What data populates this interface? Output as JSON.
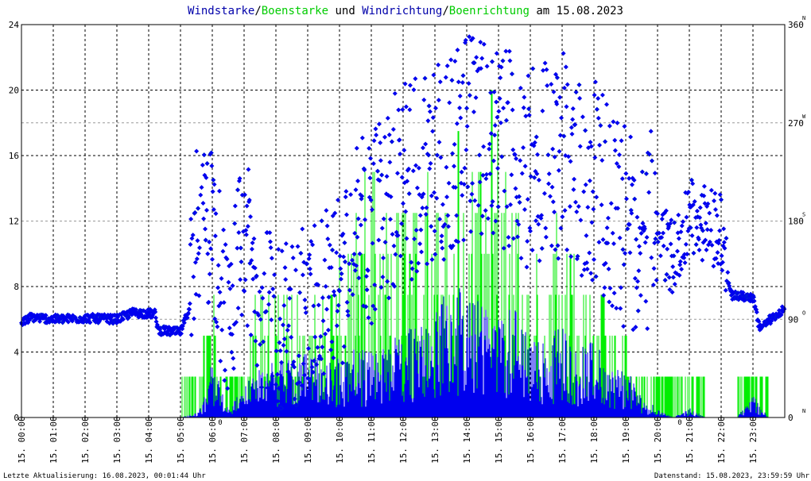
{
  "title": {
    "part1": "Windstarke",
    "sep1": "/",
    "part2": "Boenstarke",
    "mid": " und ",
    "part3": "Windrichtung",
    "sep2": "/",
    "part4": "Boenrichtung",
    "tail": " am 15.08.2023"
  },
  "colors": {
    "wind": "#0000ee",
    "gust": "#00ee00",
    "grid": "#000000",
    "marker": "#ff0000"
  },
  "footer": {
    "left": "Letzte Aktualisierung: 16.08.2023, 00:01:44 Uhr",
    "right": "Datenstand: 15.08.2023, 23:59:59 Uhr"
  },
  "chart_data": {
    "type": "line",
    "x_ticks": [
      "15. 00:00",
      "15. 01:00",
      "15. 02:00",
      "15. 03:00",
      "15. 04:00",
      "15. 05:00",
      "15. 06:00",
      "15. 07:00",
      "15. 08:00",
      "15. 09:00",
      "15. 10:00",
      "15. 11:00",
      "15. 12:00",
      "15. 13:00",
      "15. 14:00",
      "15. 15:00",
      "15. 16:00",
      "15. 17:00",
      "15. 18:00",
      "15. 19:00",
      "15. 20:00",
      "15. 21:00",
      "15. 22:00",
      "15. 23:00"
    ],
    "y_left": {
      "ticks": [
        "0",
        "4",
        "8",
        "12",
        "16",
        "20",
        "24"
      ],
      "ylim": [
        0,
        24
      ]
    },
    "y_right": {
      "ticks": [
        {
          "value": "0",
          "dir": "N"
        },
        {
          "value": "90",
          "dir": "O"
        },
        {
          "value": "180",
          "dir": "S"
        },
        {
          "value": "270",
          "dir": "W"
        },
        {
          "value": "360",
          "dir": "N"
        }
      ],
      "ylim": [
        0,
        360
      ]
    },
    "zero_markers": [
      {
        "hour": 6.25,
        "label": "0"
      },
      {
        "hour": 20.7,
        "label": "0"
      }
    ],
    "envelope_hours": [
      0,
      5.0,
      5.5,
      6.0,
      6.5,
      7.0,
      7.5,
      8.0,
      8.5,
      9.0,
      9.5,
      10.0,
      10.5,
      11.0,
      11.5,
      12.0,
      12.5,
      13.0,
      13.5,
      14.0,
      14.5,
      15.0,
      15.5,
      16.0,
      16.5,
      17.0,
      17.5,
      18.0,
      18.5,
      19.0,
      19.5,
      20.0,
      20.5,
      21.0,
      21.5,
      22.0,
      22.5,
      23.0,
      23.5,
      24
    ],
    "wind_max": [
      0,
      0,
      0.3,
      3.4,
      0.5,
      1.9,
      3.2,
      3.4,
      3.6,
      4.2,
      3.3,
      3.7,
      4.2,
      4.1,
      4.5,
      5.5,
      6.1,
      6.3,
      8.8,
      7.2,
      7.3,
      6.3,
      7.0,
      4.7,
      4.9,
      5.9,
      4.2,
      4.8,
      3.3,
      3.0,
      1.5,
      0.5,
      0,
      0.6,
      0,
      0,
      0,
      1.4,
      0,
      0
    ],
    "gust_max": [
      0,
      0,
      2.5,
      7.5,
      2.5,
      5.1,
      7.5,
      8.0,
      7.5,
      7.5,
      7.5,
      10.0,
      12.5,
      17.5,
      12.5,
      15.0,
      17.5,
      17.9,
      19.0,
      20.0,
      20.0,
      20.0,
      12.5,
      12.5,
      12.5,
      15.0,
      7.5,
      7.5,
      7.5,
      5.0,
      2.5,
      2.5,
      0,
      2.5,
      0,
      0,
      0,
      2.5,
      0,
      0
    ],
    "direction_trace": [
      {
        "hour": 0.0,
        "deg": 86
      },
      {
        "hour": 0.3,
        "deg": 92
      },
      {
        "hour": 1.0,
        "deg": 90
      },
      {
        "hour": 2.0,
        "deg": 91
      },
      {
        "hour": 3.0,
        "deg": 90
      },
      {
        "hour": 3.5,
        "deg": 96
      },
      {
        "hour": 4.2,
        "deg": 95
      },
      {
        "hour": 4.3,
        "deg": 80
      },
      {
        "hour": 5.0,
        "deg": 78
      },
      {
        "hour": 5.4,
        "deg": 110
      },
      {
        "hour": 5.5,
        "deg": 180
      },
      {
        "hour": 6.0,
        "deg": 165
      },
      {
        "hour": 6.5,
        "deg": 95
      },
      {
        "hour": 7.0,
        "deg": 165
      },
      {
        "hour": 7.5,
        "deg": 100
      },
      {
        "hour": 8.0,
        "deg": 85
      },
      {
        "hour": 9.0,
        "deg": 95
      },
      {
        "hour": 10.0,
        "deg": 130
      },
      {
        "hour": 11.0,
        "deg": 180
      },
      {
        "hour": 12.0,
        "deg": 215
      },
      {
        "hour": 13.0,
        "deg": 230
      },
      {
        "hour": 14.0,
        "deg": 260
      },
      {
        "hour": 15.0,
        "deg": 250
      },
      {
        "hour": 16.0,
        "deg": 230
      },
      {
        "hour": 17.0,
        "deg": 240
      },
      {
        "hour": 18.0,
        "deg": 215
      },
      {
        "hour": 19.0,
        "deg": 170
      },
      {
        "hour": 20.0,
        "deg": 170
      },
      {
        "hour": 20.5,
        "deg": 145
      },
      {
        "hour": 21.0,
        "deg": 185
      },
      {
        "hour": 22.0,
        "deg": 170
      },
      {
        "hour": 22.3,
        "deg": 112
      },
      {
        "hour": 23.0,
        "deg": 110
      },
      {
        "hour": 23.2,
        "deg": 82
      },
      {
        "hour": 24.0,
        "deg": 100
      }
    ]
  }
}
